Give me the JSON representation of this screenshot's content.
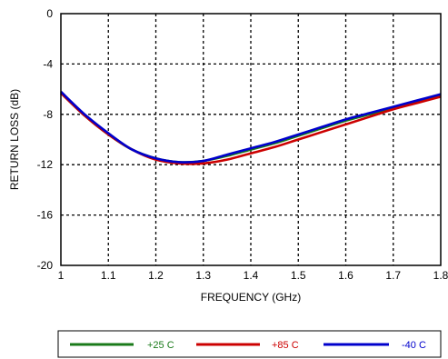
{
  "chart_data": {
    "type": "line",
    "title": "",
    "xlabel": "FREQUENCY (GHz)",
    "ylabel": "RETURN LOSS (dB)",
    "xlim": [
      1,
      1.8
    ],
    "ylim": [
      -20,
      0
    ],
    "xticks": [
      "1",
      "1.1",
      "1.2",
      "1.3",
      "1.4",
      "1.5",
      "1.6",
      "1.7",
      "1.8"
    ],
    "yticks": [
      "0",
      "-4",
      "-8",
      "-12",
      "-16",
      "-20"
    ],
    "grid": true,
    "legend_position": "bottom",
    "x": [
      1.0,
      1.05,
      1.1,
      1.15,
      1.2,
      1.25,
      1.3,
      1.35,
      1.4,
      1.45,
      1.5,
      1.55,
      1.6,
      1.65,
      1.7,
      1.75,
      1.8
    ],
    "series": [
      {
        "name": "+25 C",
        "color": "#1a7a1a",
        "values": [
          -6.3,
          -8.1,
          -9.6,
          -10.8,
          -11.5,
          -11.8,
          -11.7,
          -11.3,
          -10.8,
          -10.3,
          -9.7,
          -9.1,
          -8.5,
          -8.0,
          -7.5,
          -7.0,
          -6.5
        ]
      },
      {
        "name": "+85 C",
        "color": "#cc0000",
        "values": [
          -6.3,
          -8.1,
          -9.6,
          -10.8,
          -11.6,
          -11.9,
          -11.9,
          -11.6,
          -11.1,
          -10.6,
          -10.0,
          -9.4,
          -8.8,
          -8.2,
          -7.6,
          -7.1,
          -6.6
        ]
      },
      {
        "name": "-40 C",
        "color": "#0000cc",
        "values": [
          -6.2,
          -8.0,
          -9.5,
          -10.8,
          -11.5,
          -11.8,
          -11.7,
          -11.2,
          -10.7,
          -10.2,
          -9.6,
          -9.0,
          -8.4,
          -7.9,
          -7.4,
          -6.9,
          -6.4
        ]
      }
    ]
  }
}
